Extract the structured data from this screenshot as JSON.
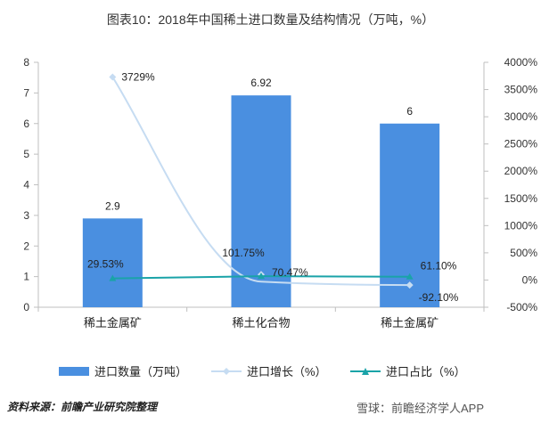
{
  "title": "图表10：2018年中国稀土进口数量及结构情况（万吨，%）",
  "source": "资料来源：前瞻产业研究院整理",
  "footer_brand": "雪球：前瞻经济学人APP",
  "colors": {
    "bar": "#4a8fe0",
    "growth_line": "#c6dcf2",
    "share_line": "#1aa3a8",
    "axis": "#bfbfbf"
  },
  "chart_data": {
    "type": "bar",
    "categories": [
      "稀土金属矿",
      "稀土化合物",
      "稀土金属矿"
    ],
    "series": [
      {
        "name": "进口数量（万吨）",
        "type": "bar",
        "axis": "left",
        "values": [
          2.9,
          6.92,
          6
        ],
        "labels": [
          "2.9",
          "6.92",
          "6"
        ]
      },
      {
        "name": "进口增长（%）",
        "type": "line",
        "axis": "right",
        "values": [
          3729,
          101.75,
          -92.1
        ],
        "labels": [
          "3729%",
          "101.75%",
          "-92.10%"
        ]
      },
      {
        "name": "进口占比（%）",
        "type": "line",
        "axis": "right",
        "values": [
          29.53,
          70.47,
          61.1
        ],
        "labels": [
          "29.53%",
          "70.47%",
          "61.10%"
        ]
      }
    ],
    "y_left": {
      "min": 0,
      "max": 8,
      "step": 1,
      "ticks": [
        "0",
        "1",
        "2",
        "3",
        "4",
        "5",
        "6",
        "7",
        "8"
      ]
    },
    "y_right": {
      "min": -500,
      "max": 4000,
      "step": 500,
      "ticks": [
        "-500%",
        "0%",
        "500%",
        "1000%",
        "1500%",
        "2000%",
        "2500%",
        "3000%",
        "3500%",
        "4000%"
      ]
    },
    "legend_position": "bottom",
    "grid": false
  }
}
